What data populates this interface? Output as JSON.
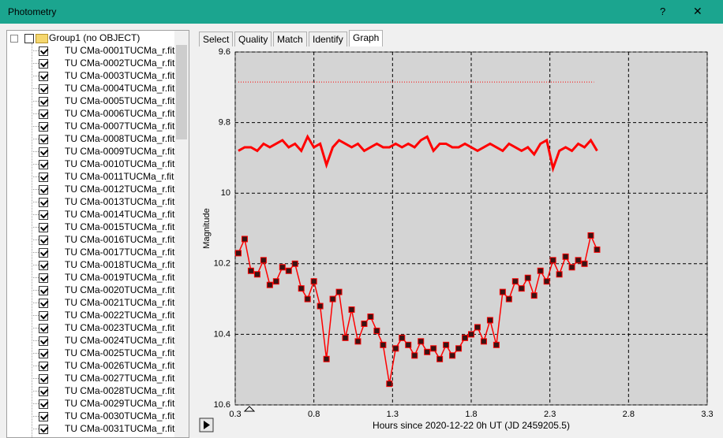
{
  "window": {
    "title": "Photometry",
    "help": "?",
    "close": "✕"
  },
  "tree": {
    "group": "Group1 (no OBJECT)",
    "items": [
      "TU CMa-0001TUCMa_r.fit",
      "TU CMa-0002TUCMa_r.fit",
      "TU CMa-0003TUCMa_r.fit",
      "TU CMa-0004TUCMa_r.fit",
      "TU CMa-0005TUCMa_r.fit",
      "TU CMa-0006TUCMa_r.fit",
      "TU CMa-0007TUCMa_r.fit",
      "TU CMa-0008TUCMa_r.fit",
      "TU CMa-0009TUCMa_r.fit",
      "TU CMa-0010TUCMa_r.fit",
      "TU CMa-0011TUCMa_r.fit",
      "TU CMa-0012TUCMa_r.fit",
      "TU CMa-0013TUCMa_r.fit",
      "TU CMa-0014TUCMa_r.fit",
      "TU CMa-0015TUCMa_r.fit",
      "TU CMa-0016TUCMa_r.fit",
      "TU CMa-0017TUCMa_r.fit",
      "TU CMa-0018TUCMa_r.fit",
      "TU CMa-0019TUCMa_r.fit",
      "TU CMa-0020TUCMa_r.fit",
      "TU CMa-0021TUCMa_r.fit",
      "TU CMa-0022TUCMa_r.fit",
      "TU CMa-0023TUCMa_r.fit",
      "TU CMa-0024TUCMa_r.fit",
      "TU CMa-0025TUCMa_r.fit",
      "TU CMa-0026TUCMa_r.fit",
      "TU CMa-0027TUCMa_r.fit",
      "TU CMa-0028TUCMa_r.fit",
      "TU CMa-0029TUCMa_r.fit",
      "TU CMa-0030TUCMa_r.fit",
      "TU CMa-0031TUCMa_r.fit"
    ]
  },
  "tabs": [
    "Select",
    "Quality",
    "Match",
    "Identify",
    "Graph"
  ],
  "active_tab": 4,
  "chart_data": {
    "type": "line",
    "x_label": "Hours since 2020-12-22 0h UT (JD 2459205.5)",
    "y_label": "Magnitude",
    "xlim": [
      0.3,
      3.3
    ],
    "xticks": [
      0.3,
      0.8,
      1.3,
      1.8,
      2.3,
      2.8,
      3.3
    ],
    "ylim": [
      10.6,
      9.6
    ],
    "yticks": [
      9.6,
      9.8,
      10,
      10.2,
      10.4,
      10.6
    ],
    "grid": true,
    "background": "#d4d4d4",
    "x": [
      0.32,
      0.36,
      0.4,
      0.44,
      0.48,
      0.52,
      0.56,
      0.6,
      0.64,
      0.68,
      0.72,
      0.76,
      0.8,
      0.84,
      0.88,
      0.92,
      0.96,
      1.0,
      1.04,
      1.08,
      1.12,
      1.16,
      1.2,
      1.24,
      1.28,
      1.32,
      1.36,
      1.4,
      1.44,
      1.48,
      1.52,
      1.56,
      1.6,
      1.64,
      1.68,
      1.72,
      1.76,
      1.8,
      1.84,
      1.88,
      1.92,
      1.96,
      2.0,
      2.04,
      2.08,
      2.12,
      2.16,
      2.2,
      2.24,
      2.28,
      2.32,
      2.36,
      2.4,
      2.44,
      2.48,
      2.52,
      2.56,
      2.6
    ],
    "series": [
      {
        "color": "#ff0000",
        "marker": "square",
        "width": 1.5,
        "values": [
          10.17,
          10.13,
          10.22,
          10.23,
          10.19,
          10.26,
          10.25,
          10.21,
          10.22,
          10.2,
          10.27,
          10.3,
          10.25,
          10.32,
          10.47,
          10.3,
          10.28,
          10.41,
          10.33,
          10.42,
          10.37,
          10.35,
          10.39,
          10.43,
          10.54,
          10.44,
          10.41,
          10.43,
          10.46,
          10.42,
          10.45,
          10.44,
          10.47,
          10.43,
          10.46,
          10.44,
          10.41,
          10.4,
          10.38,
          10.42,
          10.36,
          10.43,
          10.28,
          10.3,
          10.25,
          10.27,
          10.24,
          10.29,
          10.22,
          10.25,
          10.19,
          10.23,
          10.18,
          10.21,
          10.19,
          10.2,
          10.12,
          10.16
        ]
      },
      {
        "color": "#ff0000",
        "width": 3,
        "values": [
          9.88,
          9.87,
          9.87,
          9.88,
          9.86,
          9.87,
          9.86,
          9.85,
          9.87,
          9.86,
          9.88,
          9.84,
          9.87,
          9.86,
          9.92,
          9.87,
          9.85,
          9.86,
          9.87,
          9.86,
          9.88,
          9.87,
          9.86,
          9.87,
          9.87,
          9.86,
          9.87,
          9.86,
          9.87,
          9.85,
          9.84,
          9.88,
          9.86,
          9.86,
          9.87,
          9.87,
          9.86,
          9.87,
          9.88,
          9.87,
          9.86,
          9.87,
          9.88,
          9.86,
          9.87,
          9.88,
          9.87,
          9.89,
          9.86,
          9.85,
          9.93,
          9.88,
          9.87,
          9.88,
          9.86,
          9.87,
          9.85,
          9.88
        ]
      },
      {
        "color": "#ff0000",
        "width": 1,
        "dash": "dotted",
        "x": [
          0.32,
          2.58
        ],
        "values": [
          9.685,
          9.685
        ]
      }
    ]
  }
}
